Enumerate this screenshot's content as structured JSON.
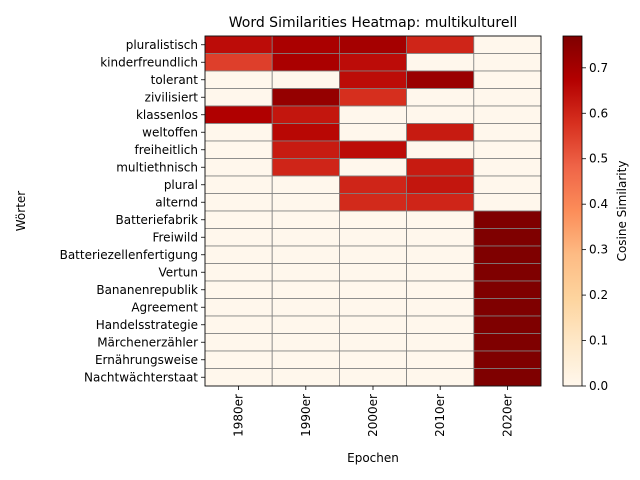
{
  "chart_data": {
    "type": "heatmap",
    "title": "Word Similarities Heatmap: multikulturell",
    "xlabel": "Epochen",
    "ylabel": "Wörter",
    "x_categories": [
      "1980er",
      "1990er",
      "2000er",
      "2010er",
      "2020er"
    ],
    "y_categories": [
      "pluralistisch",
      "kinderfreundlich",
      "tolerant",
      "zivilisiert",
      "klassenlos",
      "weltoffen",
      "freiheitlich",
      "multiethnisch",
      "plural",
      "alternd",
      "Batteriefabrik",
      "Freiwild",
      "Batteriezellenfertigung",
      "Vertun",
      "Bananenrepublik",
      "Agreement",
      "Handelsstrategie",
      "Märchenerzähler",
      "Ernährungsweise",
      "Nachtwächterstaat"
    ],
    "values": [
      [
        0.65,
        0.69,
        0.7,
        0.6,
        0.0
      ],
      [
        0.55,
        0.69,
        0.65,
        0.0,
        0.0
      ],
      [
        0.0,
        0.0,
        0.65,
        0.72,
        0.0
      ],
      [
        0.0,
        0.73,
        0.58,
        0.0,
        0.0
      ],
      [
        0.68,
        0.63,
        0.0,
        0.0,
        0.0
      ],
      [
        0.0,
        0.66,
        0.0,
        0.62,
        0.0
      ],
      [
        0.0,
        0.62,
        0.65,
        0.0,
        0.0
      ],
      [
        0.0,
        0.6,
        0.0,
        0.62,
        0.0
      ],
      [
        0.0,
        0.0,
        0.6,
        0.63,
        0.0
      ],
      [
        0.0,
        0.0,
        0.59,
        0.6,
        0.0
      ],
      [
        0.0,
        0.0,
        0.0,
        0.0,
        0.77
      ],
      [
        0.0,
        0.0,
        0.0,
        0.0,
        0.77
      ],
      [
        0.0,
        0.0,
        0.0,
        0.0,
        0.77
      ],
      [
        0.0,
        0.0,
        0.0,
        0.0,
        0.77
      ],
      [
        0.0,
        0.0,
        0.0,
        0.0,
        0.77
      ],
      [
        0.0,
        0.0,
        0.0,
        0.0,
        0.77
      ],
      [
        0.0,
        0.0,
        0.0,
        0.0,
        0.77
      ],
      [
        0.0,
        0.0,
        0.0,
        0.0,
        0.77
      ],
      [
        0.0,
        0.0,
        0.0,
        0.0,
        0.77
      ],
      [
        0.0,
        0.0,
        0.0,
        0.0,
        0.77
      ]
    ],
    "colorbar": {
      "label": "Cosine Similarity",
      "range": [
        0.0,
        0.77
      ],
      "ticks": [
        0.0,
        0.1,
        0.2,
        0.3,
        0.4,
        0.5,
        0.6,
        0.7
      ],
      "colormap": "OrRd"
    }
  }
}
